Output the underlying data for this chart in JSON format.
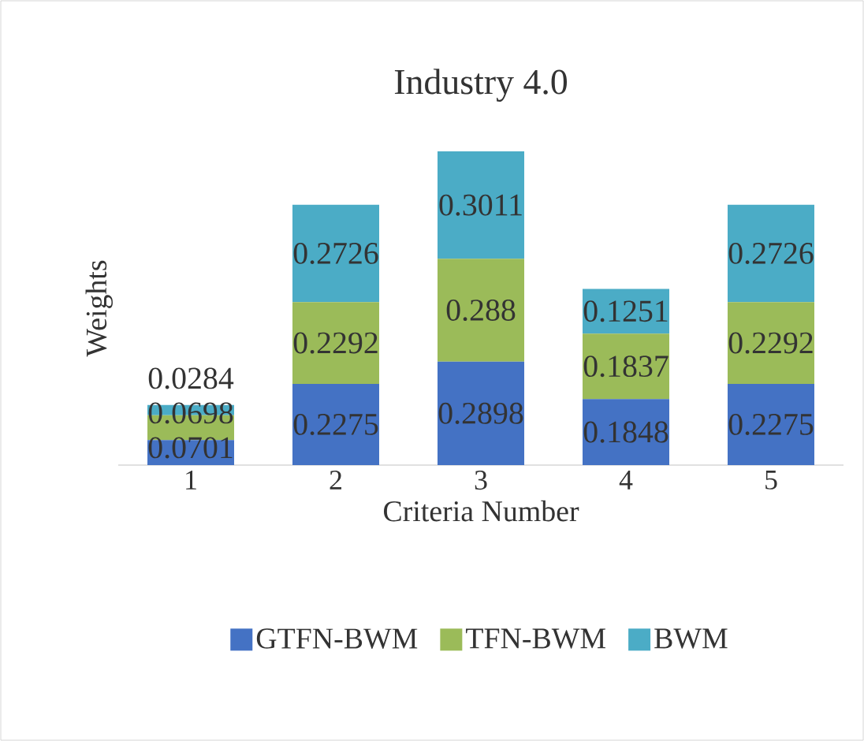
{
  "chart_data": {
    "type": "bar",
    "title": "Industry 4.0",
    "xlabel": "Criteria Number",
    "ylabel": "Weights",
    "categories": [
      "1",
      "2",
      "3",
      "4",
      "5"
    ],
    "stacked": true,
    "data_labels": true,
    "legend": "bottom",
    "series": [
      {
        "name": "GTFN-BWM",
        "color": "#4472c4",
        "values": [
          0.0701,
          0.2275,
          0.2898,
          0.1848,
          0.2275
        ]
      },
      {
        "name": "TFN-BWM",
        "color": "#9bbb59",
        "values": [
          0.0698,
          0.2292,
          0.288,
          0.1837,
          0.2292
        ]
      },
      {
        "name": "BWM",
        "color": "#4bacc6",
        "values": [
          0.0284,
          0.2726,
          0.3011,
          0.1251,
          0.2726
        ]
      }
    ]
  }
}
